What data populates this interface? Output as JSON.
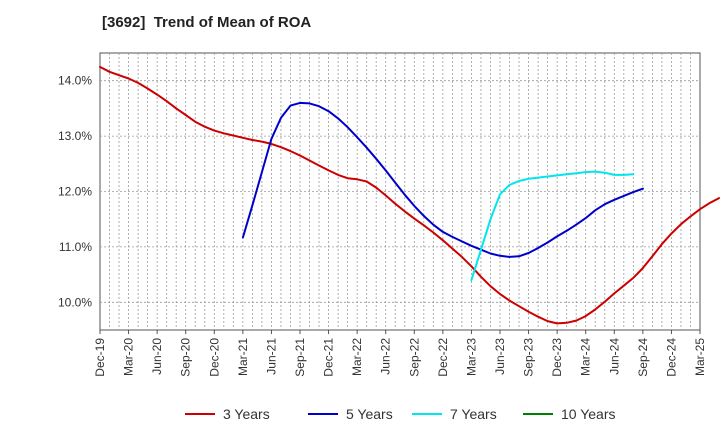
{
  "chart_data": {
    "type": "line",
    "title": "[3692]  Trend of Mean of ROA",
    "xlabel": "",
    "ylabel": "",
    "ylim": [
      9.5,
      14.5
    ],
    "y_ticks": [
      "10.0%",
      "11.0%",
      "12.0%",
      "13.0%",
      "14.0%"
    ],
    "y_tick_values": [
      10,
      11,
      12,
      13,
      14
    ],
    "x_tick_labels": [
      "Dec-19",
      "Mar-20",
      "Jun-20",
      "Sep-20",
      "Dec-20",
      "Mar-21",
      "Jun-21",
      "Sep-21",
      "Dec-21",
      "Mar-22",
      "Jun-22",
      "Sep-22",
      "Dec-22",
      "Mar-23",
      "Jun-23",
      "Sep-23",
      "Dec-23",
      "Mar-24",
      "Jun-24",
      "Sep-24",
      "Dec-24",
      "Mar-25"
    ],
    "grid": true,
    "legend_position": "bottom",
    "series": [
      {
        "name": "3 Years",
        "color": "#cc0000",
        "start_index": 0,
        "values": [
          14.25,
          14.16,
          14.1,
          14.04,
          13.96,
          13.86,
          13.75,
          13.63,
          13.5,
          13.38,
          13.26,
          13.17,
          13.1,
          13.05,
          13.01,
          12.97,
          12.93,
          12.9,
          12.86,
          12.8,
          12.73,
          12.65,
          12.56,
          12.47,
          12.38,
          12.3,
          12.24,
          12.22,
          12.18,
          12.07,
          11.93,
          11.78,
          11.64,
          11.51,
          11.39,
          11.26,
          11.12,
          10.97,
          10.82,
          10.65,
          10.46,
          10.29,
          10.15,
          10.03,
          9.93,
          9.83,
          9.74,
          9.66,
          9.62,
          9.63,
          9.67,
          9.75,
          9.87,
          10.01,
          10.16,
          10.3,
          10.44,
          10.62,
          10.83,
          11.05,
          11.24,
          11.41,
          11.55,
          11.68,
          11.79,
          11.88
        ]
      },
      {
        "name": "5 Years",
        "color": "#0000cc",
        "start_index": 15,
        "values": [
          11.17,
          11.75,
          12.35,
          12.95,
          13.33,
          13.55,
          13.6,
          13.59,
          13.54,
          13.45,
          13.32,
          13.16,
          12.98,
          12.79,
          12.59,
          12.38,
          12.16,
          11.94,
          11.74,
          11.56,
          11.4,
          11.27,
          11.18,
          11.1,
          11.02,
          10.95,
          10.88,
          10.84,
          10.82,
          10.83,
          10.89,
          10.98,
          11.08,
          11.19,
          11.29,
          11.4,
          11.52,
          11.66,
          11.77,
          11.85,
          11.92,
          11.99,
          12.05
        ]
      },
      {
        "name": "7 Years",
        "color": "#00e5ee",
        "start_index": 39,
        "values": [
          10.4,
          10.95,
          11.5,
          11.95,
          12.12,
          12.19,
          12.23,
          12.25,
          12.27,
          12.29,
          12.31,
          12.33,
          12.35,
          12.36,
          12.34,
          12.3,
          12.3,
          12.31
        ]
      },
      {
        "name": "10 Years",
        "color": "#008000",
        "start_index": 0,
        "values": []
      }
    ]
  }
}
